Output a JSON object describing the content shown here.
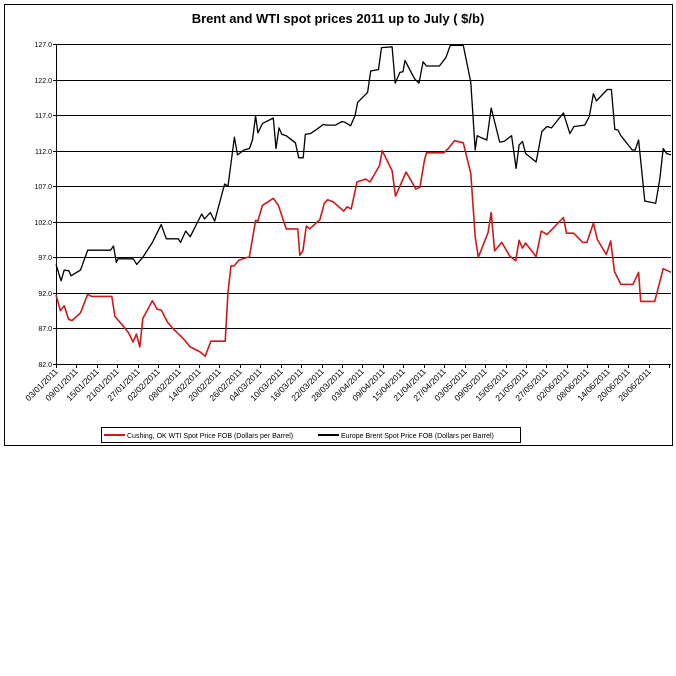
{
  "chart_data": {
    "type": "line",
    "title": "Brent and WTI spot prices 2011 up to July ( $/b)",
    "xlabel": "",
    "ylabel": "",
    "x_unit": "days since 03/01/2011",
    "xlim": [
      0,
      180.6
    ],
    "ylim": [
      82,
      127
    ],
    "y_ticks": [
      "127.0",
      "122.0",
      "117.0",
      "112.0",
      "107.0",
      "102.0",
      "97.0",
      "92.0",
      "87.0",
      "82.0"
    ],
    "y_tick_values": [
      127,
      122,
      117,
      112,
      107,
      102,
      97,
      92,
      87,
      82
    ],
    "x_tick_labels": [
      "03/01/2011",
      "09/01/2011",
      "15/01/2011",
      "21/01/2011",
      "27/01/2011",
      "02/02/2011",
      "08/02/2011",
      "14/02/2011",
      "20/02/2011",
      "26/02/2011",
      "04/03/2011",
      "10/03/2011",
      "16/03/2011",
      "22/03/2011",
      "28/03/2011",
      "03/04/2011",
      "09/04/2011",
      "15/04/2011",
      "21/04/2011",
      "27/04/2011",
      "03/05/2011",
      "09/05/2011",
      "15/05/2011",
      "21/05/2011",
      "27/05/2011",
      "02/06/2011",
      "08/06/2011",
      "14/06/2011",
      "20/06/2011",
      "26/06/2011"
    ],
    "x_tick_interval_days": 6,
    "grid": "horizontal",
    "legend_position": "bottom",
    "series": [
      {
        "name": "Cushing, OK WTI Spot Price FOB (Dollars per Barrel)",
        "color": "#cc1a1a",
        "x": [
          0,
          1.3,
          2.4,
          3.7,
          4.7,
          7.2,
          9.3,
          10.4,
          16.4,
          17.3,
          19.8,
          21.3,
          22.6,
          23.6,
          24.6,
          25.5,
          28.3,
          29.7,
          30.9,
          32.7,
          34.3,
          37.5,
          39.4,
          42.3,
          43.8,
          45.5,
          49.7,
          50.5,
          51.4,
          52.3,
          53.7,
          56.8,
          58.6,
          59.3,
          60.6,
          63.8,
          65.3,
          67.6,
          71.0,
          71.6,
          72.5,
          73.5,
          74.5,
          77.5,
          78.8,
          79.8,
          81.4,
          84.5,
          85.5,
          86.7,
          88.4,
          90.9,
          92.2,
          95.0,
          95.8,
          98.7,
          99.7,
          102.8,
          105.7,
          106.9,
          108.2,
          108.8,
          113.9,
          115.2,
          117.0,
          119.6,
          121.8,
          123.1,
          124.0,
          126.9,
          127.8,
          128.8,
          130.9,
          133.2,
          135.0,
          136.0,
          137.0,
          137.9,
          141.0,
          142.5,
          144.2,
          149.0,
          149.9,
          152.0,
          154.7,
          155.9,
          157.8,
          159.0,
          161.6,
          162.9,
          164.0,
          165.9,
          169.4,
          171.1,
          171.7,
          175.8,
          178.3,
          180.6
        ],
        "values": [
          91.7,
          89.5,
          90.2,
          88.3,
          88.1,
          89.2,
          91.8,
          91.5,
          91.5,
          88.7,
          87.3,
          86.4,
          85.1,
          86.2,
          84.4,
          88.4,
          90.9,
          89.7,
          89.6,
          87.9,
          87.0,
          85.5,
          84.4,
          83.7,
          83.1,
          85.2,
          85.2,
          92.1,
          95.8,
          95.8,
          96.6,
          97.1,
          102.2,
          102.1,
          104.3,
          105.3,
          104.3,
          101.0,
          101.0,
          97.3,
          97.9,
          101.4,
          101.0,
          102.3,
          104.6,
          105.1,
          104.8,
          103.5,
          104.1,
          103.8,
          107.6,
          108.0,
          107.6,
          109.9,
          112.0,
          109.2,
          105.6,
          109.0,
          106.6,
          106.9,
          110.7,
          111.7,
          111.7,
          112.3,
          113.4,
          113.1,
          108.8,
          99.9,
          97.0,
          100.5,
          103.3,
          97.9,
          99.1,
          97.2,
          96.5,
          99.4,
          98.3,
          99.0,
          97.1,
          100.7,
          100.2,
          102.6,
          100.4,
          100.4,
          99.1,
          99.1,
          101.8,
          99.5,
          97.4,
          99.3,
          95.0,
          93.2,
          93.2,
          94.9,
          90.8,
          90.8,
          95.4,
          94.9
        ]
      },
      {
        "name": "Europe Brent Spot Price FOB (Dollars per Barrel)",
        "color": "#000000",
        "x": [
          0,
          1.5,
          2.4,
          3.8,
          4.4,
          7.2,
          9.3,
          16.0,
          16.9,
          17.7,
          18.2,
          22.7,
          23.7,
          25.5,
          28.3,
          30.9,
          32.4,
          35.9,
          36.6,
          38.1,
          39.4,
          42.8,
          43.6,
          45.3,
          46.6,
          49.5,
          50.5,
          52.4,
          53.3,
          55.2,
          56.8,
          57.7,
          58.6,
          59.3,
          60.6,
          63.8,
          64.6,
          65.5,
          66.3,
          67.6,
          70.3,
          71.3,
          72.6,
          73.2,
          74.7,
          76.6,
          78.5,
          79.4,
          82.1,
          84.0,
          84.8,
          86.5,
          87.8,
          88.6,
          91.5,
          92.4,
          94.7,
          95.6,
          98.7,
          99.6,
          101.0,
          101.9,
          102.5,
          105.3,
          106.6,
          107.8,
          108.8,
          112.6,
          114.5,
          115.8,
          119.6,
          121.8,
          123.1,
          123.7,
          125.0,
          126.5,
          127.8,
          130.3,
          131.6,
          133.8,
          135.1,
          136.0,
          137.0,
          137.9,
          141.0,
          142.7,
          144.2,
          145.5,
          149.0,
          150.9,
          152.1,
          155.3,
          156.6,
          157.8,
          158.7,
          161.9,
          163.1,
          164.1,
          165.0,
          165.9,
          169.2,
          170.1,
          171.1,
          172.9,
          173.2,
          176.1,
          177.3,
          178.3,
          179.3,
          180.6
        ],
        "values": [
          96.0,
          93.7,
          95.2,
          95.1,
          94.4,
          95.2,
          98.0,
          98.0,
          98.6,
          96.3,
          96.8,
          96.8,
          96.0,
          97.0,
          99.1,
          101.6,
          99.6,
          99.6,
          99.1,
          100.7,
          99.9,
          103.1,
          102.4,
          103.3,
          102.1,
          107.3,
          107.0,
          113.9,
          111.4,
          112.1,
          112.3,
          113.5,
          116.9,
          114.5,
          115.8,
          116.6,
          112.3,
          115.2,
          114.3,
          114.1,
          113.1,
          111.0,
          111.0,
          114.3,
          114.4,
          115.0,
          115.7,
          115.6,
          115.6,
          116.1,
          116.0,
          115.5,
          116.9,
          118.8,
          120.2,
          123.2,
          123.4,
          126.5,
          126.6,
          121.5,
          123.0,
          123.1,
          124.7,
          122.1,
          121.5,
          124.5,
          123.9,
          123.9,
          125.1,
          126.8,
          126.8,
          121.6,
          112.1,
          114.1,
          113.8,
          113.5,
          118.0,
          113.2,
          113.3,
          114.1,
          109.5,
          112.8,
          113.3,
          111.6,
          110.4,
          114.7,
          115.4,
          115.2,
          117.3,
          114.4,
          115.4,
          115.6,
          116.8,
          120.0,
          119.0,
          120.6,
          120.6,
          115.0,
          114.9,
          114.1,
          112.1,
          112.1,
          113.5,
          104.9,
          104.9,
          104.6,
          108.0,
          112.3,
          111.6,
          111.4
        ]
      }
    ]
  }
}
